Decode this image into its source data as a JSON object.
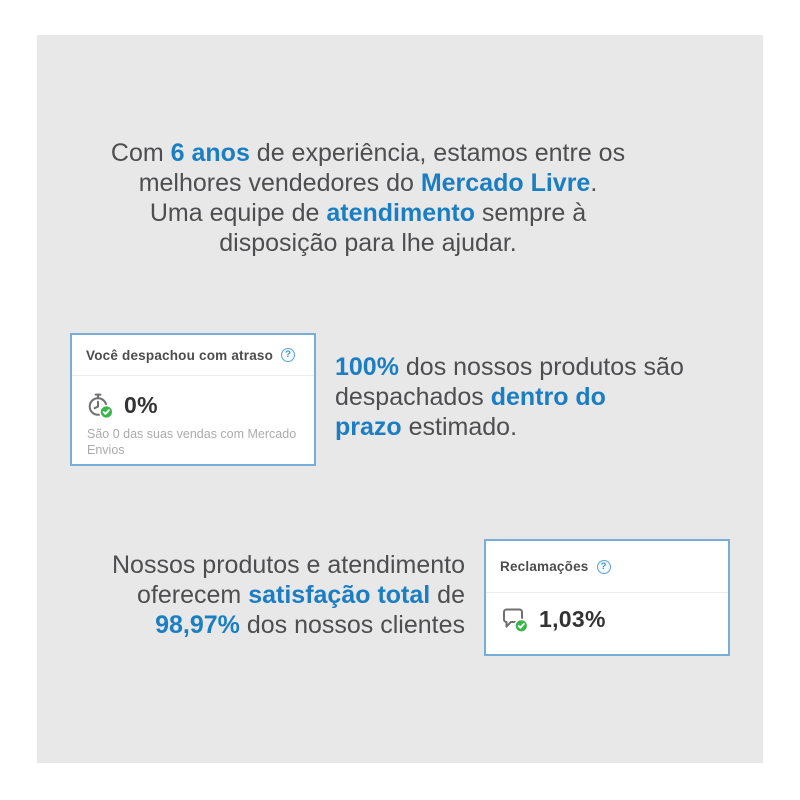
{
  "colors": {
    "background": "#ffffff",
    "panel": "#e8e8e9",
    "accent_blue": "#1b7ec2",
    "card_border": "#76add9",
    "success_green": "#39b54a"
  },
  "icons": {
    "help_glyph": "?"
  },
  "intro": {
    "lines": [
      [
        {
          "t": "Com "
        },
        {
          "t": "6 anos",
          "hl": true
        },
        {
          "t": " de experiência, estamos entre os"
        }
      ],
      [
        {
          "t": "melhores vendedores do "
        },
        {
          "t": "Mercado Livre",
          "hl": true
        },
        {
          "t": "."
        }
      ],
      [
        {
          "t": "Uma equipe de "
        },
        {
          "t": "atendimento",
          "hl": true
        },
        {
          "t": " sempre à"
        }
      ],
      [
        {
          "t": "disposição para lhe ajudar."
        }
      ]
    ]
  },
  "dispatch_card": {
    "title": "Você despachou com atraso",
    "value": "0%",
    "subtitle": "São 0 das suas vendas com Mercado Envios"
  },
  "dispatch_text": {
    "lines": [
      [
        {
          "t": "100%",
          "hl": true
        },
        {
          "t": " dos nossos produtos são"
        }
      ],
      [
        {
          "t": "despachados "
        },
        {
          "t": "dentro do",
          "hl": true
        }
      ],
      [
        {
          "t": "prazo",
          "hl": true
        },
        {
          "t": " estimado."
        }
      ]
    ]
  },
  "claims_text": {
    "lines": [
      [
        {
          "t": "Nossos produtos e atendimento"
        }
      ],
      [
        {
          "t": "oferecem "
        },
        {
          "t": "satisfação total",
          "hl": true
        },
        {
          "t": " de"
        }
      ],
      [
        {
          "t": "98,97%",
          "hl": true
        },
        {
          "t": " dos nossos clientes"
        }
      ]
    ]
  },
  "claims_card": {
    "title": "Reclamações",
    "value": "1,03%"
  }
}
